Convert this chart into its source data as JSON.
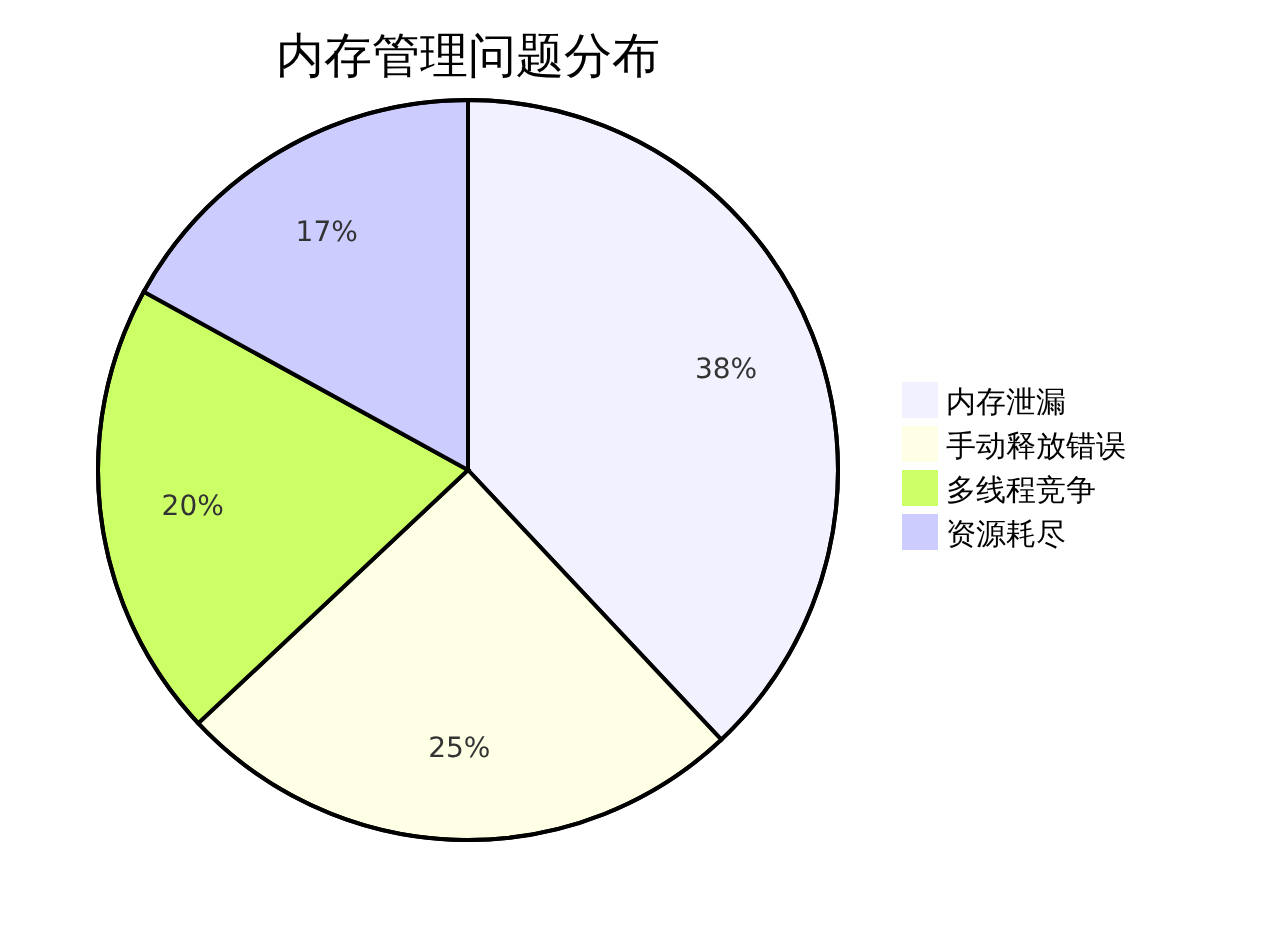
{
  "chart_data": {
    "type": "pie",
    "title": "内存管理问题分布",
    "categories": [
      "内存泄漏",
      "手动释放错误",
      "多线程竞争",
      "资源耗尽"
    ],
    "values": [
      38,
      25,
      20,
      17
    ],
    "colors": [
      "#f1f1ff",
      "#ffffe6",
      "#ccff66",
      "#ccccff"
    ],
    "value_labels": [
      "38%",
      "25%",
      "20%",
      "17%"
    ],
    "legend": "right"
  }
}
